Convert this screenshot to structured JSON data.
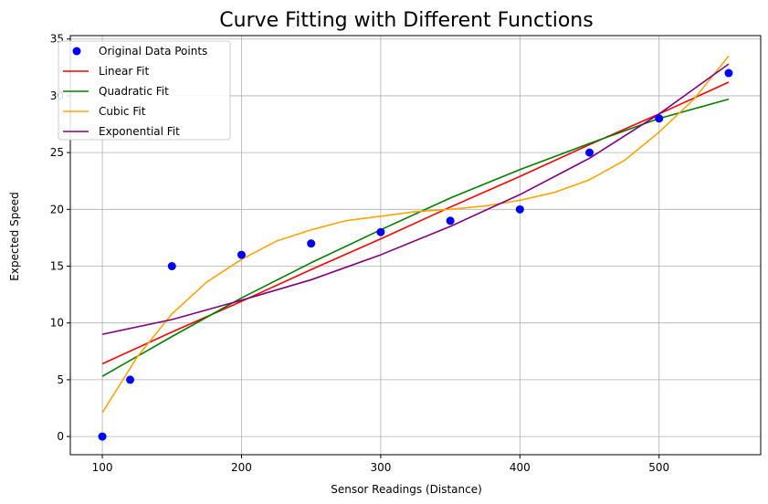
{
  "chart_data": {
    "type": "line",
    "title": "Curve Fitting with Different Functions",
    "xlabel": "Sensor Readings (Distance)",
    "ylabel": "Expected Speed",
    "xlim": [
      77,
      573
    ],
    "ylim": [
      -1.6,
      35.3
    ],
    "xticks": [
      100,
      200,
      300,
      400,
      500
    ],
    "yticks": [
      0,
      5,
      10,
      15,
      20,
      25,
      30,
      35
    ],
    "grid": true,
    "legend_position": "upper-left",
    "points": {
      "name": "Original Data Points",
      "color": "#0000ff",
      "x": [
        100,
        120,
        150,
        200,
        250,
        300,
        350,
        400,
        450,
        500,
        550
      ],
      "y": [
        0,
        5,
        15,
        16,
        17,
        18,
        19,
        20,
        25,
        28,
        32
      ]
    },
    "series": [
      {
        "name": "Linear Fit",
        "color": "#ff0000",
        "x": [
          100,
          150,
          200,
          250,
          300,
          350,
          400,
          450,
          500,
          550
        ],
        "y": [
          6.4,
          9.2,
          11.9,
          14.7,
          17.4,
          20.2,
          22.9,
          25.7,
          28.4,
          31.2
        ]
      },
      {
        "name": "Quadratic Fit",
        "color": "#008000",
        "x": [
          100,
          150,
          200,
          250,
          300,
          350,
          400,
          450,
          500,
          550
        ],
        "y": [
          5.3,
          8.8,
          12.2,
          15.3,
          18.2,
          21.0,
          23.5,
          25.8,
          28.0,
          29.7
        ]
      },
      {
        "name": "Cubic Fit",
        "color": "#ffa500",
        "x": [
          100,
          125,
          150,
          175,
          200,
          225,
          250,
          275,
          300,
          325,
          350,
          375,
          400,
          425,
          450,
          475,
          500,
          525,
          550
        ],
        "y": [
          2.1,
          7.0,
          10.8,
          13.6,
          15.6,
          17.2,
          18.2,
          19.0,
          19.4,
          19.8,
          20.0,
          20.3,
          20.8,
          21.5,
          22.6,
          24.3,
          26.8,
          29.7,
          33.5
        ]
      },
      {
        "name": "Exponential Fit",
        "color": "#800080",
        "x": [
          100,
          150,
          200,
          250,
          300,
          350,
          400,
          450,
          500,
          550
        ],
        "y": [
          9.0,
          10.3,
          12.0,
          13.8,
          16.0,
          18.5,
          21.3,
          24.5,
          28.4,
          32.8
        ]
      }
    ]
  }
}
